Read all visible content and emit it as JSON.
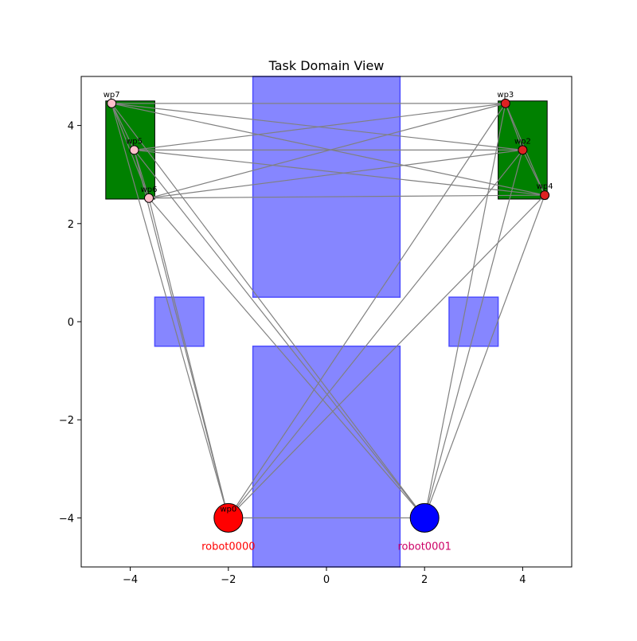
{
  "chart_data": {
    "type": "scatter",
    "title": "Task Domain View",
    "xlabel": "",
    "ylabel": "",
    "xlim": [
      -5,
      5
    ],
    "ylim": [
      -5,
      5
    ],
    "xticks": [
      -4,
      -2,
      0,
      2,
      4
    ],
    "yticks": [
      -4,
      -2,
      0,
      2,
      4
    ],
    "xtick_labels": [
      "−4",
      "−2",
      "0",
      "2",
      "4"
    ],
    "ytick_labels": [
      "−4",
      "−2",
      "0",
      "2",
      "4"
    ],
    "grid": false,
    "regions": [
      {
        "kind": "goal-zone",
        "x0": -4.5,
        "x1": -3.5,
        "y0": 2.5,
        "y1": 4.5,
        "color": "#008000"
      },
      {
        "kind": "goal-zone",
        "x0": 3.5,
        "x1": 4.5,
        "y0": 2.5,
        "y1": 4.5,
        "color": "#008000"
      },
      {
        "kind": "obstacle",
        "x0": -1.5,
        "x1": 1.5,
        "y0": 0.5,
        "y1": 5.0,
        "color": "#8080ff"
      },
      {
        "kind": "obstacle",
        "x0": -1.5,
        "x1": 1.5,
        "y0": -5.0,
        "y1": -0.5,
        "color": "#8080ff"
      },
      {
        "kind": "obstacle",
        "x0": -3.5,
        "x1": -2.5,
        "y0": -0.5,
        "y1": 0.5,
        "color": "#8080ff"
      },
      {
        "kind": "obstacle",
        "x0": 2.5,
        "x1": 3.5,
        "y0": -0.5,
        "y1": 0.5,
        "color": "#8080ff"
      }
    ],
    "waypoints": [
      {
        "id": "wp0",
        "label": "wp0",
        "x": -2.0,
        "y": -4.0,
        "color": "#ff0000"
      },
      {
        "id": "wp1",
        "label": "",
        "x": 2.0,
        "y": -4.0,
        "color": "#0000ff"
      },
      {
        "id": "wp2",
        "label": "wp2",
        "x": 4.0,
        "y": 3.5,
        "color": "#dd2222"
      },
      {
        "id": "wp3",
        "label": "wp3",
        "x": 3.65,
        "y": 4.45,
        "color": "#dd2222"
      },
      {
        "id": "wp4",
        "label": "wp4",
        "x": 4.45,
        "y": 2.58,
        "color": "#dd2222"
      },
      {
        "id": "wp5",
        "label": "wp5",
        "x": -3.92,
        "y": 3.5,
        "color": "#ffc0cb"
      },
      {
        "id": "wp6",
        "label": "wp6",
        "x": -3.62,
        "y": 2.52,
        "color": "#ffc0cb"
      },
      {
        "id": "wp7",
        "label": "wp7",
        "x": -4.38,
        "y": 4.45,
        "color": "#ffc0cb"
      }
    ],
    "edges": [
      [
        "wp0",
        "wp1"
      ],
      [
        "wp0",
        "wp2"
      ],
      [
        "wp0",
        "wp3"
      ],
      [
        "wp0",
        "wp4"
      ],
      [
        "wp0",
        "wp5"
      ],
      [
        "wp0",
        "wp6"
      ],
      [
        "wp0",
        "wp7"
      ],
      [
        "wp1",
        "wp2"
      ],
      [
        "wp1",
        "wp3"
      ],
      [
        "wp1",
        "wp4"
      ],
      [
        "wp1",
        "wp5"
      ],
      [
        "wp1",
        "wp6"
      ],
      [
        "wp1",
        "wp7"
      ],
      [
        "wp2",
        "wp3"
      ],
      [
        "wp2",
        "wp4"
      ],
      [
        "wp2",
        "wp5"
      ],
      [
        "wp2",
        "wp6"
      ],
      [
        "wp2",
        "wp7"
      ],
      [
        "wp3",
        "wp4"
      ],
      [
        "wp3",
        "wp5"
      ],
      [
        "wp3",
        "wp6"
      ],
      [
        "wp3",
        "wp7"
      ],
      [
        "wp4",
        "wp5"
      ],
      [
        "wp4",
        "wp6"
      ],
      [
        "wp4",
        "wp7"
      ],
      [
        "wp5",
        "wp6"
      ],
      [
        "wp5",
        "wp7"
      ],
      [
        "wp6",
        "wp7"
      ]
    ],
    "robots": [
      {
        "name": "robot0000",
        "x": -2.0,
        "y": -4.0,
        "color": "#ff0000",
        "label_color": "#ff0000"
      },
      {
        "name": "robot0001",
        "x": 2.0,
        "y": -4.0,
        "color": "#0000ff",
        "label_color": "#cc0066"
      }
    ],
    "edge_color": "#808080",
    "frame_color": "#000000"
  }
}
